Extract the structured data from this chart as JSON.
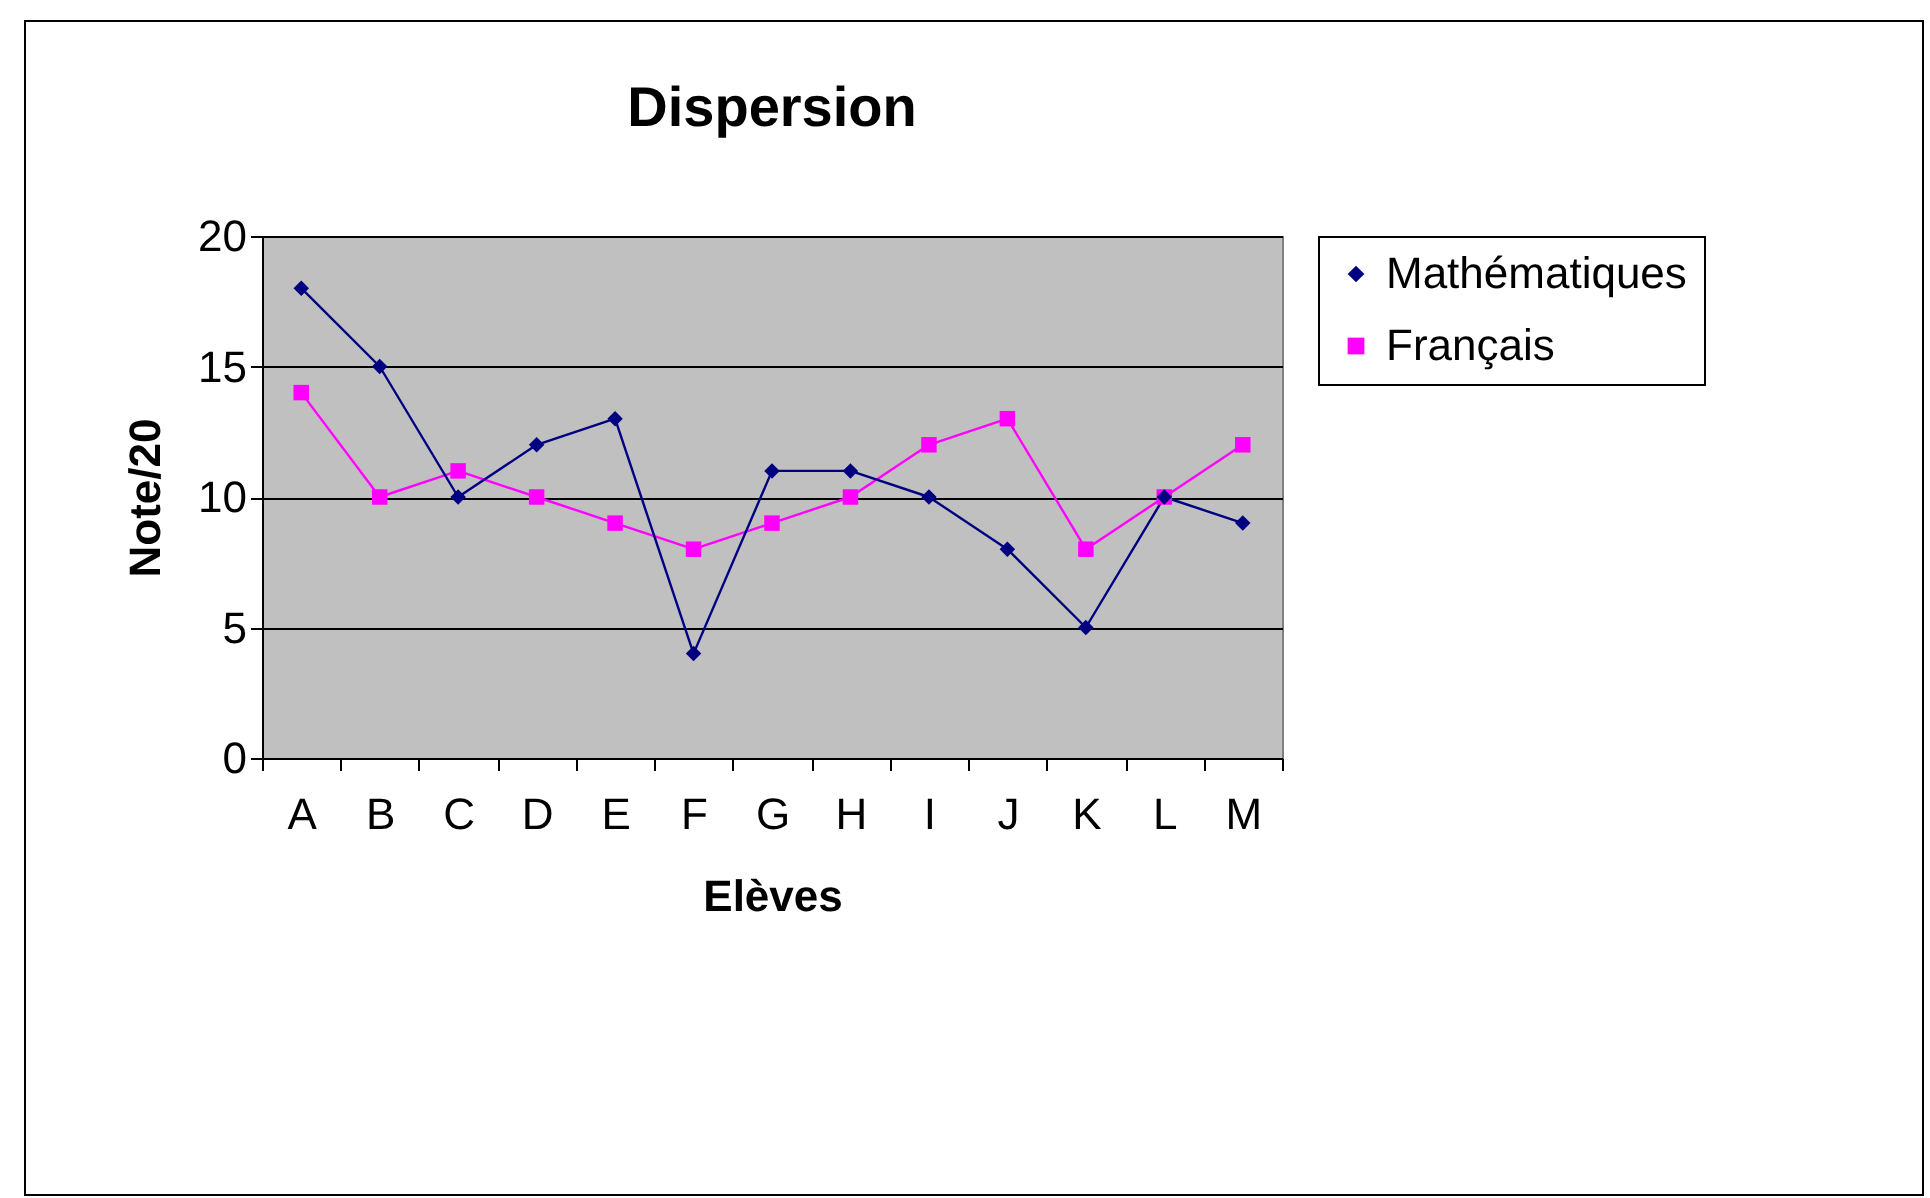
{
  "chart_data": {
    "type": "line",
    "title": "Dispersion",
    "xlabel": "Elèves",
    "ylabel": "Note/20",
    "categories": [
      "A",
      "B",
      "C",
      "D",
      "E",
      "F",
      "G",
      "H",
      "I",
      "J",
      "K",
      "L",
      "M"
    ],
    "series": [
      {
        "name": "Mathématiques",
        "color": "#000080",
        "marker": "diamond",
        "values": [
          18,
          15,
          10,
          12,
          13,
          4,
          11,
          11,
          10,
          8,
          5,
          10,
          9
        ]
      },
      {
        "name": "Français",
        "color": "#ff00ff",
        "marker": "square",
        "values": [
          14,
          10,
          11,
          10,
          9,
          8,
          9,
          10,
          12,
          13,
          8,
          10,
          12
        ]
      }
    ],
    "ylim": [
      0,
      20
    ],
    "yticks": [
      0,
      5,
      10,
      15,
      20
    ],
    "grid": "y",
    "legend": "right"
  }
}
